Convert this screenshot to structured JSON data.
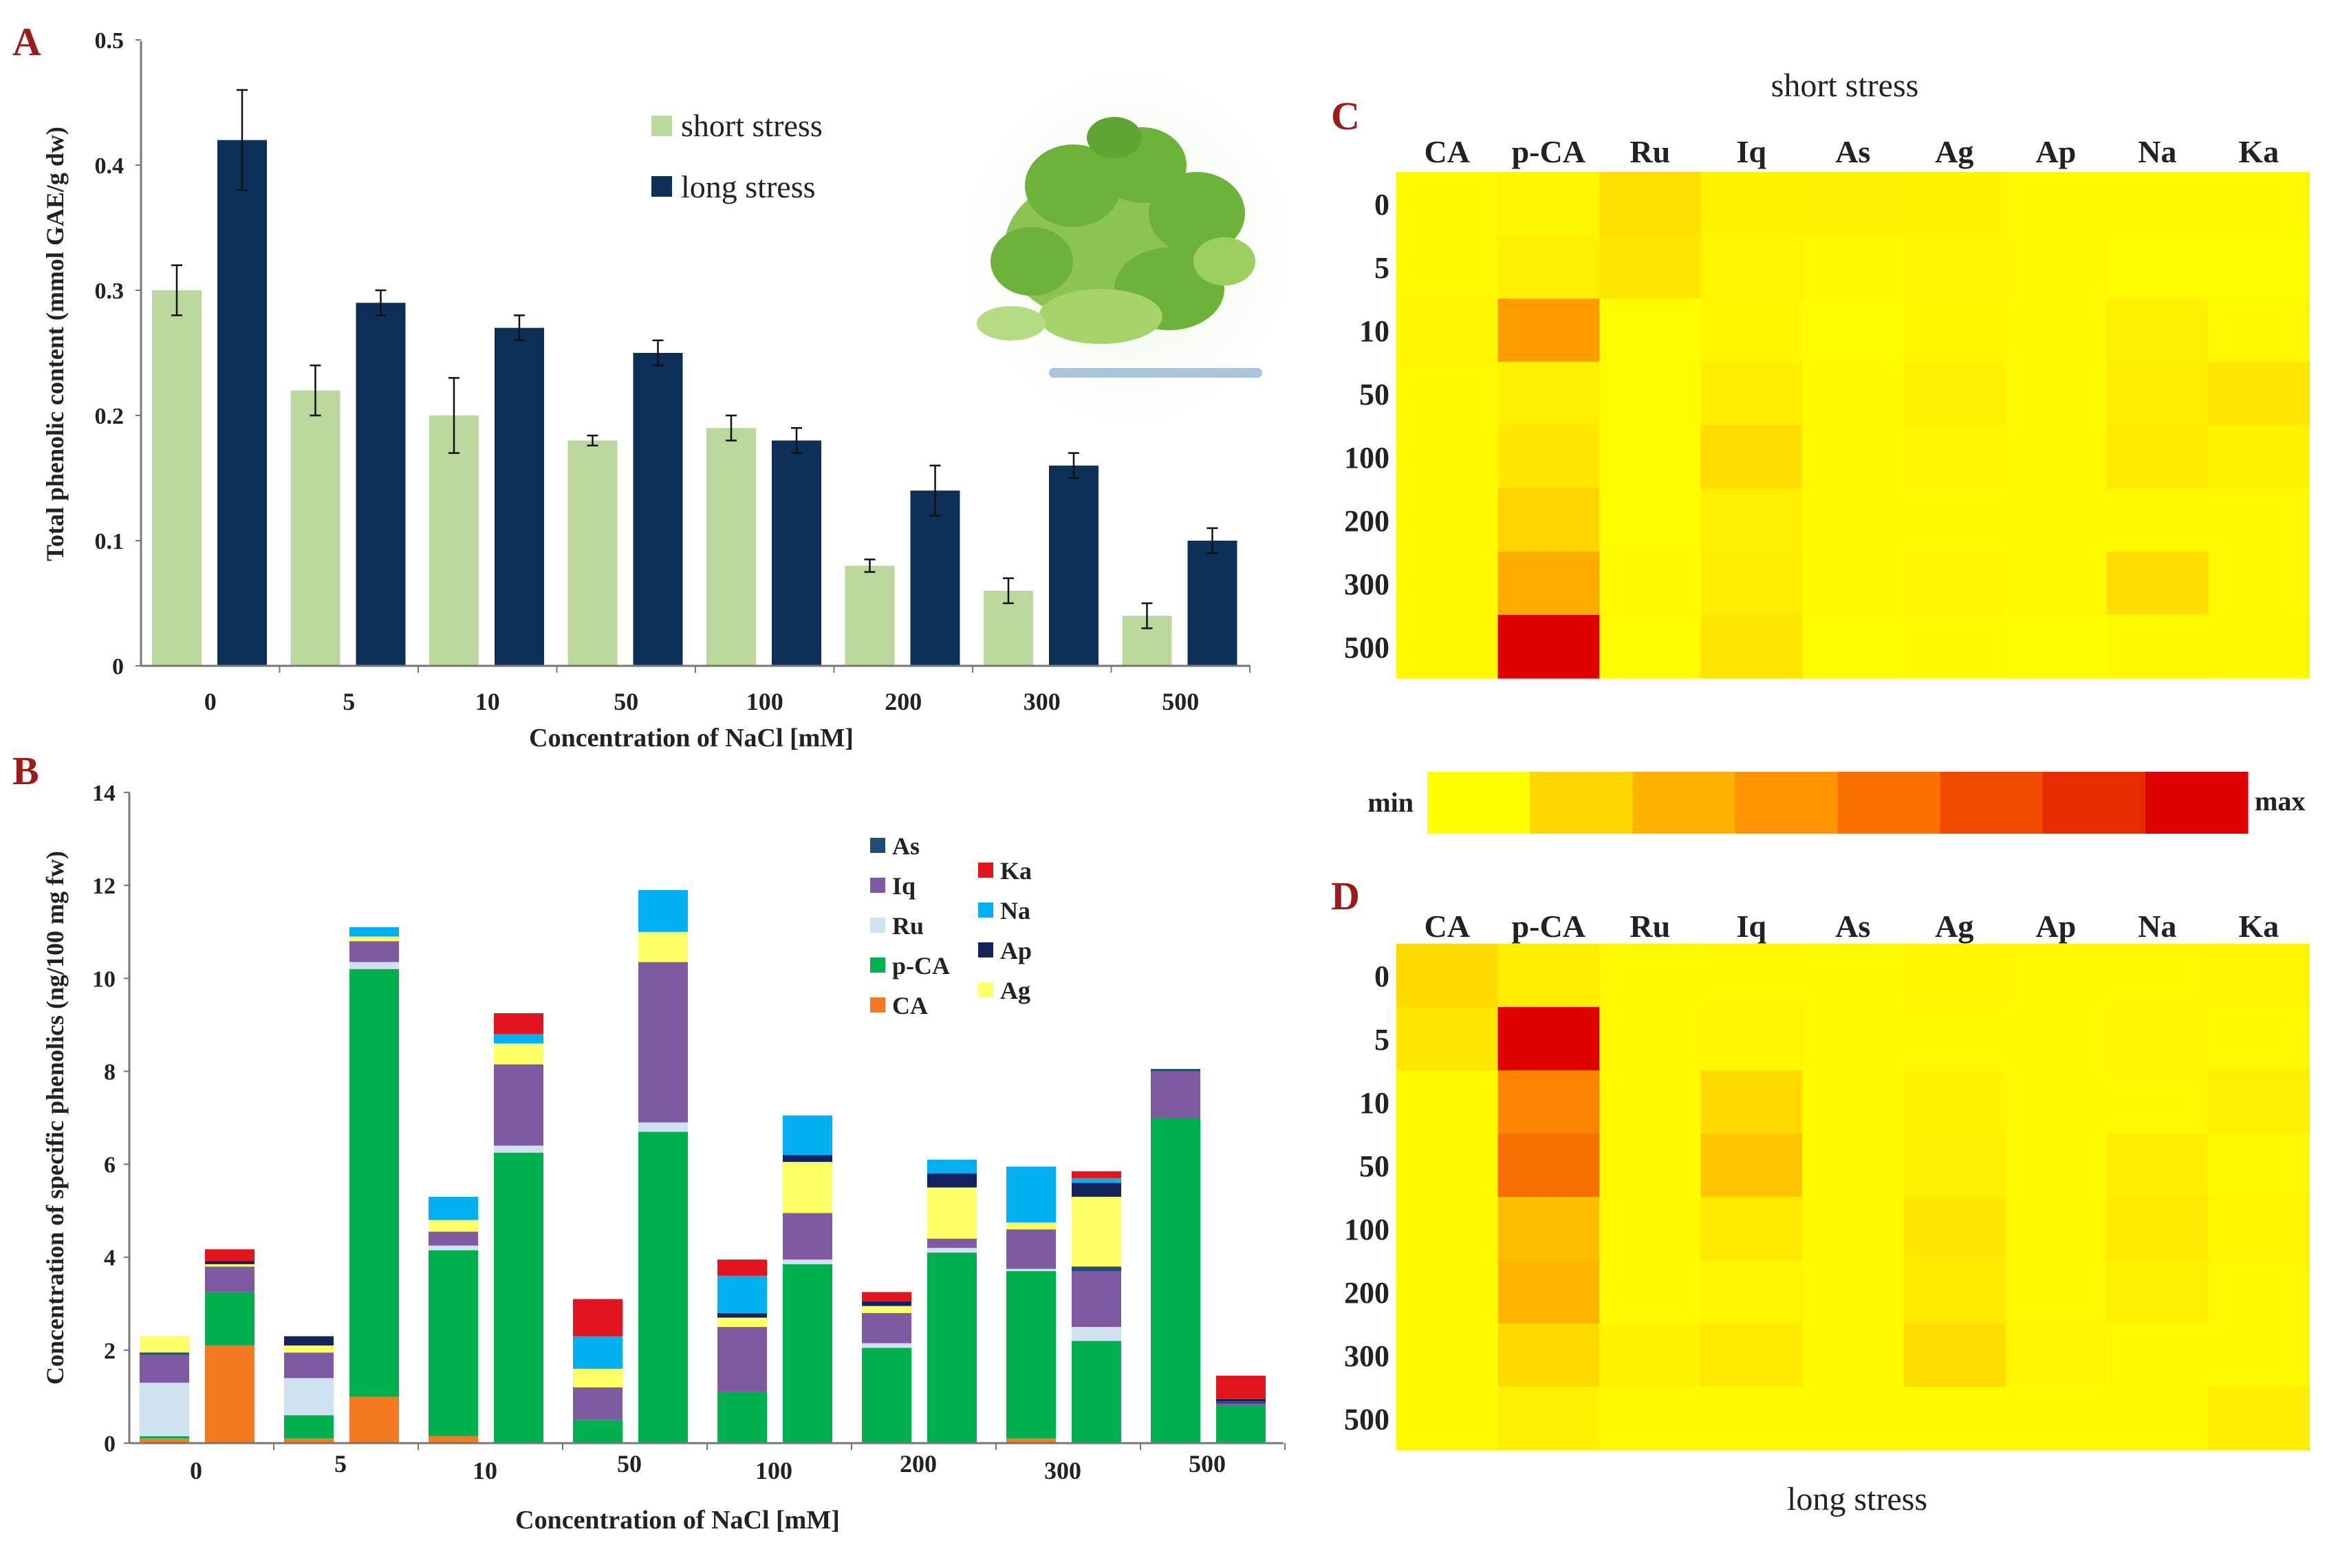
{
  "chart_data": [
    {
      "panel": "A",
      "type": "bar",
      "categories": [
        "0",
        "5",
        "10",
        "50",
        "100",
        "200",
        "300",
        "500"
      ],
      "series": [
        {
          "name": "short stress",
          "color": "#bcd79b",
          "values": [
            0.3,
            0.22,
            0.2,
            0.18,
            0.19,
            0.08,
            0.06,
            0.04
          ],
          "errors": [
            0.02,
            0.02,
            0.03,
            0.004,
            0.01,
            0.005,
            0.01,
            0.01
          ]
        },
        {
          "name": "long stress",
          "color": "#0e3058",
          "values": [
            0.42,
            0.29,
            0.27,
            0.25,
            0.18,
            0.14,
            0.16,
            0.1
          ],
          "errors": [
            0.04,
            0.01,
            0.01,
            0.01,
            0.01,
            0.02,
            0.01,
            0.01
          ]
        }
      ],
      "yticks": [
        "0",
        "0.1",
        "0.2",
        "0.3",
        "0.4",
        "0.5"
      ],
      "ylim": [
        0,
        0.5
      ],
      "xlabel": "Concentration of NaCl [mM]",
      "ylabel": "Total phenolic content (mmol GAE/g dw)"
    },
    {
      "panel": "B",
      "type": "bar",
      "stacked": true,
      "categories": [
        "0",
        "5",
        "10",
        "50",
        "100",
        "200",
        "300",
        "500"
      ],
      "stack_order": [
        "CA",
        "p-CA",
        "Ru",
        "Iq",
        "As",
        "Ag",
        "Ap",
        "Na",
        "Ka"
      ],
      "colors": {
        "CA": "#f47920",
        "p-CA": "#00b04f",
        "Ru": "#cfe2f0",
        "Iq": "#7f5aa2",
        "As": "#1f4e79",
        "Ag": "#ffff66",
        "Ap": "#12235e",
        "Na": "#00b0f0",
        "Ka": "#e2151f"
      },
      "bars": [
        {
          "group": "0",
          "stress": "short",
          "CA": 0.1,
          "p-CA": 0.05,
          "Ru": 1.15,
          "Iq": 0.6,
          "As": 0.05,
          "Ag": 0.35,
          "Ap": 0,
          "Na": 0,
          "Ka": 0
        },
        {
          "group": "0",
          "stress": "long",
          "CA": 2.1,
          "p-CA": 1.15,
          "Ru": 0,
          "Iq": 0.55,
          "As": 0,
          "Ag": 0.05,
          "Ap": 0.07,
          "Na": 0,
          "Ka": 0.25
        },
        {
          "group": "5",
          "stress": "short",
          "CA": 0.1,
          "p-CA": 0.5,
          "Ru": 0.8,
          "Iq": 0.55,
          "As": 0,
          "Ag": 0.15,
          "Ap": 0.2,
          "Na": 0,
          "Ka": 0
        },
        {
          "group": "5",
          "stress": "long",
          "CA": 1.0,
          "p-CA": 9.2,
          "Ru": 0.15,
          "Iq": 0.45,
          "As": 0,
          "Ag": 0.1,
          "Ap": 0,
          "Na": 0.2,
          "Ka": 0
        },
        {
          "group": "10",
          "stress": "short",
          "CA": 0.15,
          "p-CA": 4.0,
          "Ru": 0.1,
          "Iq": 0.3,
          "As": 0,
          "Ag": 0.25,
          "Ap": 0,
          "Na": 0.5,
          "Ka": 0
        },
        {
          "group": "10",
          "stress": "long",
          "CA": 0,
          "p-CA": 6.25,
          "Ru": 0.15,
          "Iq": 1.75,
          "As": 0,
          "Ag": 0.45,
          "Ap": 0,
          "Na": 0.2,
          "Ka": 0.45
        },
        {
          "group": "50",
          "stress": "short",
          "CA": 0,
          "p-CA": 0.5,
          "Ru": 0,
          "Iq": 0.7,
          "As": 0,
          "Ag": 0.4,
          "Ap": 0,
          "Na": 0.7,
          "Ka": 0.8
        },
        {
          "group": "50",
          "stress": "long",
          "CA": 0,
          "p-CA": 6.7,
          "Ru": 0.2,
          "Iq": 3.45,
          "As": 0,
          "Ag": 0.65,
          "Ap": 0,
          "Na": 0.9,
          "Ka": 0
        },
        {
          "group": "100",
          "stress": "short",
          "CA": 0,
          "p-CA": 1.1,
          "Ru": 0,
          "Iq": 1.4,
          "As": 0,
          "Ag": 0.2,
          "Ap": 0.1,
          "Na": 0.8,
          "Ka": 0.35
        },
        {
          "group": "100",
          "stress": "long",
          "CA": 0,
          "p-CA": 3.85,
          "Ru": 0.1,
          "Iq": 1.0,
          "As": 0,
          "Ag": 1.1,
          "Ap": 0.15,
          "Na": 0.85,
          "Ka": 0
        },
        {
          "group": "200",
          "stress": "short",
          "CA": 0,
          "p-CA": 2.05,
          "Ru": 0.1,
          "Iq": 0.65,
          "As": 0,
          "Ag": 0.15,
          "Ap": 0.1,
          "Na": 0,
          "Ka": 0.2
        },
        {
          "group": "200",
          "stress": "long",
          "CA": 0,
          "p-CA": 4.1,
          "Ru": 0.1,
          "Iq": 0.2,
          "As": 0,
          "Ag": 1.1,
          "Ap": 0.3,
          "Na": 0.3,
          "Ka": 0
        },
        {
          "group": "300",
          "stress": "short",
          "CA": 0.1,
          "p-CA": 3.6,
          "Ru": 0.05,
          "Iq": 0.85,
          "As": 0,
          "Ag": 0.15,
          "Ap": 0,
          "Na": 1.2,
          "Ka": 0
        },
        {
          "group": "300",
          "stress": "long",
          "CA": 0,
          "p-CA": 2.2,
          "Ru": 0.3,
          "Iq": 1.2,
          "As": 0.1,
          "Ag": 1.5,
          "Ap": 0.3,
          "Na": 0.1,
          "Ka": 0.15
        },
        {
          "group": "500",
          "stress": "short",
          "CA": 0,
          "p-CA": 7.0,
          "Ru": 0,
          "Iq": 1.0,
          "As": 0.05,
          "Ag": 0,
          "Ap": 0,
          "Na": 0,
          "Ka": 0
        },
        {
          "group": "500",
          "stress": "long",
          "CA": 0,
          "p-CA": 0.8,
          "Ru": 0,
          "Iq": 0.05,
          "As": 0.05,
          "Ag": 0,
          "Ap": 0.05,
          "Na": 0,
          "Ka": 0.5
        }
      ],
      "legend": [
        "As",
        "Iq",
        "Ru",
        "p-CA",
        "CA",
        "Ka",
        "Na",
        "Ap",
        "Ag"
      ],
      "yticks": [
        "0",
        "2",
        "4",
        "6",
        "8",
        "10",
        "12",
        "14"
      ],
      "ylim": [
        0,
        14
      ],
      "xlabel": "Concentration of NaCl [mM]",
      "ylabel": "Concentration of specific phenolics (ng/100 mg fw)"
    },
    {
      "panel": "C",
      "type": "heatmap",
      "title": "short stress",
      "columns": [
        "CA",
        "p-CA",
        "Ru",
        "Iq",
        "As",
        "Ag",
        "Ap",
        "Na",
        "Ka"
      ],
      "rows": [
        "0",
        "5",
        "10",
        "50",
        "100",
        "200",
        "300",
        "500"
      ],
      "values": [
        [
          0.05,
          0.08,
          0.25,
          0.1,
          0.12,
          0.1,
          0.05,
          0.05,
          0.05
        ],
        [
          0.05,
          0.12,
          0.22,
          0.08,
          0.05,
          0.08,
          0.06,
          0.03,
          0.03
        ],
        [
          0.08,
          0.62,
          0.03,
          0.07,
          0.03,
          0.07,
          0.04,
          0.12,
          0.05
        ],
        [
          0.06,
          0.12,
          0.03,
          0.15,
          0.04,
          0.12,
          0.05,
          0.15,
          0.22
        ],
        [
          0.06,
          0.2,
          0.03,
          0.28,
          0.05,
          0.08,
          0.05,
          0.18,
          0.1
        ],
        [
          0.05,
          0.35,
          0.03,
          0.12,
          0.04,
          0.05,
          0.04,
          0.05,
          0.05
        ],
        [
          0.06,
          0.55,
          0.04,
          0.14,
          0.04,
          0.08,
          0.04,
          0.28,
          0.05
        ],
        [
          0.05,
          1.0,
          0.03,
          0.22,
          0.03,
          0.04,
          0.03,
          0.05,
          0.04
        ]
      ]
    },
    {
      "panel": "D",
      "type": "heatmap",
      "title": "long stress",
      "columns": [
        "CA",
        "p-CA",
        "Ru",
        "Iq",
        "As",
        "Ag",
        "Ap",
        "Na",
        "Ka"
      ],
      "rows": [
        "0",
        "5",
        "10",
        "50",
        "100",
        "200",
        "300",
        "500"
      ],
      "values": [
        [
          0.3,
          0.15,
          0.05,
          0.06,
          0.05,
          0.07,
          0.06,
          0.06,
          0.08
        ],
        [
          0.22,
          1.0,
          0.05,
          0.08,
          0.05,
          0.06,
          0.05,
          0.08,
          0.05
        ],
        [
          0.04,
          0.7,
          0.04,
          0.3,
          0.04,
          0.1,
          0.05,
          0.06,
          0.12
        ],
        [
          0.04,
          0.75,
          0.04,
          0.42,
          0.04,
          0.12,
          0.05,
          0.15,
          0.05
        ],
        [
          0.04,
          0.45,
          0.04,
          0.18,
          0.04,
          0.2,
          0.06,
          0.18,
          0.07
        ],
        [
          0.04,
          0.5,
          0.04,
          0.08,
          0.04,
          0.18,
          0.06,
          0.12,
          0.06
        ],
        [
          0.04,
          0.3,
          0.1,
          0.18,
          0.04,
          0.28,
          0.08,
          0.05,
          0.05
        ],
        [
          0.04,
          0.12,
          0.04,
          0.04,
          0.06,
          0.04,
          0.04,
          0.04,
          0.15
        ]
      ]
    }
  ],
  "panel_labels": {
    "A": "A",
    "B": "B",
    "C": "C",
    "D": "D"
  },
  "colorbar": {
    "min_label": "min",
    "max_label": "max",
    "colors": [
      "#ffff00",
      "#ffd700",
      "#ffb300",
      "#ff9400",
      "#f96f00",
      "#f04c00",
      "#e92c00",
      "#e10000"
    ]
  },
  "legend_A": [
    "short stress",
    "long stress"
  ],
  "photo_icon": "plant-photo"
}
